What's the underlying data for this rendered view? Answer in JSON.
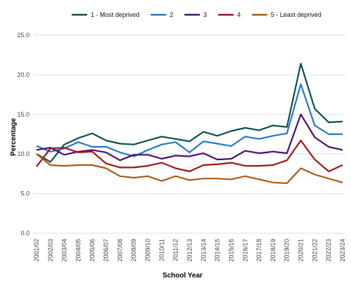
{
  "chart_data": {
    "type": "line",
    "xlabel": "School Year",
    "ylabel": "Percentage",
    "ylim": [
      0,
      25
    ],
    "yticks": [
      "0.0",
      "5.0",
      "10.0",
      "15.0",
      "20.0",
      "25.0"
    ],
    "grid": "horizontal",
    "legend_position": "top",
    "categories": [
      "2001/02",
      "2002/03",
      "2003/04",
      "2004/05",
      "2005/06",
      "2006/07",
      "2007/08",
      "2008/09",
      "2009/10",
      "2010/11",
      "2011/12",
      "2012/13",
      "2013/14",
      "2014/15",
      "2015/16",
      "2016/17",
      "2017/18",
      "2018/19",
      "2019/20",
      "2020/21",
      "2021/22",
      "2022/23",
      "2023/24"
    ],
    "series": [
      {
        "name": "1 - Most deprived",
        "color": "#0d4f4a",
        "values": [
          10.0,
          9.0,
          11.2,
          12.0,
          12.6,
          11.7,
          11.3,
          11.2,
          11.7,
          12.2,
          11.9,
          11.6,
          12.8,
          12.3,
          12.9,
          13.3,
          13.0,
          13.6,
          13.4,
          21.4,
          15.7,
          14.0,
          14.1
        ]
      },
      {
        "name": "2",
        "color": "#1f78c8",
        "values": [
          11.0,
          10.3,
          10.7,
          11.5,
          10.9,
          10.9,
          10.2,
          9.7,
          10.5,
          11.2,
          11.5,
          10.2,
          11.6,
          11.3,
          11.0,
          12.2,
          11.9,
          12.3,
          12.6,
          18.8,
          13.6,
          12.5,
          12.5
        ]
      },
      {
        "name": "3",
        "color": "#4b0f6e",
        "values": [
          10.5,
          10.8,
          9.9,
          10.3,
          10.5,
          10.2,
          9.2,
          9.9,
          9.9,
          9.4,
          9.8,
          9.7,
          10.1,
          9.3,
          9.4,
          10.4,
          10.1,
          10.3,
          10.1,
          15.0,
          12.1,
          10.9,
          10.5
        ]
      },
      {
        "name": "4",
        "color": "#a11313",
        "values": [
          8.4,
          10.7,
          10.8,
          10.2,
          10.3,
          8.8,
          8.3,
          8.3,
          8.5,
          8.9,
          8.2,
          7.8,
          8.6,
          8.7,
          8.9,
          8.5,
          8.5,
          8.6,
          9.2,
          11.7,
          9.3,
          7.8,
          8.6
        ]
      },
      {
        "name": "5 - Least deprived",
        "color": "#a95b14",
        "values": [
          10.0,
          8.6,
          8.5,
          8.6,
          8.6,
          8.2,
          7.2,
          7.0,
          7.2,
          6.6,
          7.2,
          6.7,
          6.9,
          6.9,
          6.8,
          7.2,
          6.8,
          6.4,
          6.3,
          8.2,
          7.4,
          6.9,
          6.4
        ]
      }
    ]
  }
}
